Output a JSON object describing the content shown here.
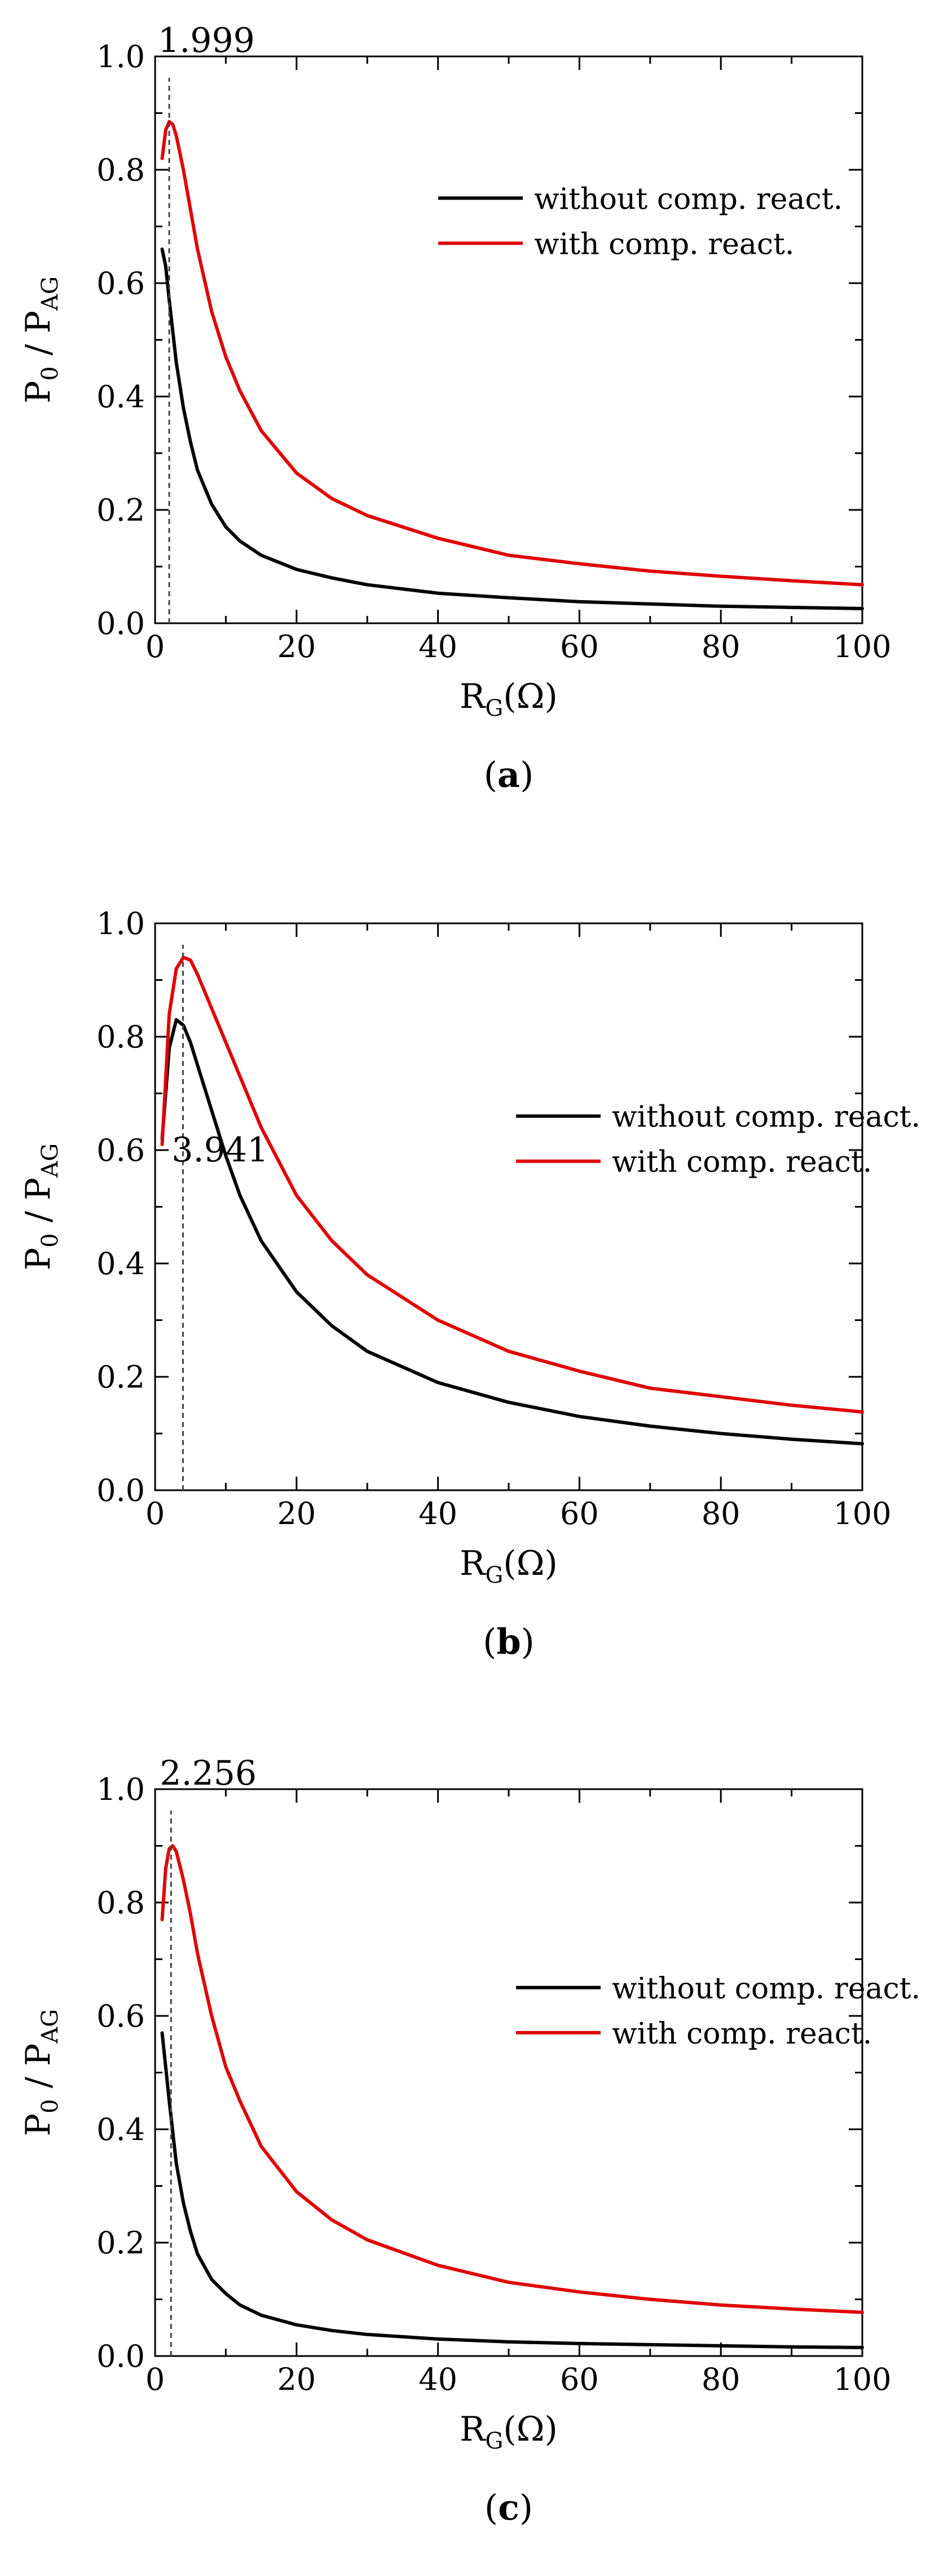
{
  "chart_data": [
    {
      "type": "line",
      "panel_label": "a",
      "xlabel": {
        "main": "R",
        "sub": "G",
        "unit": "(Ω)"
      },
      "ylabel": {
        "num": "P",
        "num_sub": "0",
        "sep": " / ",
        "den": "P",
        "den_sub": "AG"
      },
      "xlim": [
        0,
        100
      ],
      "ylim": [
        0,
        1.0
      ],
      "xticks": [
        0,
        20,
        40,
        60,
        80,
        100
      ],
      "yticks": [
        0.0,
        0.2,
        0.4,
        0.6,
        0.8,
        1.0
      ],
      "xticks_minor": [
        10,
        30,
        50,
        70,
        90
      ],
      "yticks_minor": [
        0.1,
        0.3,
        0.5,
        0.7,
        0.9
      ],
      "marker": {
        "x": 1.999,
        "label": "1.999"
      },
      "legend": {
        "position": "upper-right"
      },
      "series": [
        {
          "name": "without comp. react.",
          "color": "#000000",
          "x": [
            1,
            1.5,
            2,
            3,
            4,
            5,
            6,
            8,
            10,
            12,
            15,
            20,
            25,
            30,
            40,
            50,
            60,
            70,
            80,
            90,
            100
          ],
          "y": [
            0.66,
            0.63,
            0.57,
            0.46,
            0.38,
            0.32,
            0.27,
            0.21,
            0.17,
            0.145,
            0.12,
            0.095,
            0.08,
            0.068,
            0.053,
            0.045,
            0.038,
            0.034,
            0.03,
            0.028,
            0.026
          ]
        },
        {
          "name": "with comp. react.",
          "color": "#e00000",
          "x": [
            1,
            1.5,
            2,
            2.5,
            3,
            4,
            5,
            6,
            8,
            10,
            12,
            15,
            20,
            25,
            30,
            40,
            50,
            60,
            70,
            80,
            90,
            100
          ],
          "y": [
            0.82,
            0.87,
            0.885,
            0.88,
            0.86,
            0.8,
            0.73,
            0.66,
            0.55,
            0.47,
            0.41,
            0.34,
            0.265,
            0.22,
            0.19,
            0.15,
            0.12,
            0.105,
            0.092,
            0.083,
            0.075,
            0.068
          ]
        }
      ]
    },
    {
      "type": "line",
      "panel_label": "b",
      "xlabel": {
        "main": "R",
        "sub": "G",
        "unit": "(Ω)"
      },
      "ylabel": {
        "num": "P",
        "num_sub": "0",
        "sep": " / ",
        "den": "P",
        "den_sub": "AG"
      },
      "xlim": [
        0,
        100
      ],
      "ylim": [
        0,
        1.0
      ],
      "xticks": [
        0,
        20,
        40,
        60,
        80,
        100
      ],
      "yticks": [
        0.0,
        0.2,
        0.4,
        0.6,
        0.8,
        1.0
      ],
      "xticks_minor": [
        10,
        30,
        50,
        70,
        90
      ],
      "yticks_minor": [
        0.1,
        0.3,
        0.5,
        0.7,
        0.9
      ],
      "marker": {
        "x": 3.941,
        "label": "3.941"
      },
      "legend": {
        "position": "center-right"
      },
      "series": [
        {
          "name": "without comp. react.",
          "color": "#000000",
          "x": [
            1,
            2,
            3,
            4,
            5,
            6,
            8,
            10,
            12,
            15,
            20,
            25,
            30,
            40,
            50,
            60,
            70,
            80,
            90,
            100
          ],
          "y": [
            0.62,
            0.78,
            0.83,
            0.82,
            0.79,
            0.75,
            0.67,
            0.59,
            0.52,
            0.44,
            0.35,
            0.29,
            0.245,
            0.19,
            0.155,
            0.13,
            0.113,
            0.1,
            0.09,
            0.082
          ]
        },
        {
          "name": "with comp. react.",
          "color": "#e00000",
          "x": [
            1,
            2,
            3,
            4,
            5,
            6,
            8,
            10,
            12,
            15,
            20,
            25,
            30,
            40,
            50,
            60,
            70,
            80,
            90,
            100
          ],
          "y": [
            0.61,
            0.84,
            0.92,
            0.94,
            0.935,
            0.91,
            0.85,
            0.79,
            0.73,
            0.64,
            0.52,
            0.44,
            0.38,
            0.3,
            0.245,
            0.21,
            0.18,
            0.165,
            0.15,
            0.138
          ]
        }
      ]
    },
    {
      "type": "line",
      "panel_label": "c",
      "xlabel": {
        "main": "R",
        "sub": "G",
        "unit": "(Ω)"
      },
      "ylabel": {
        "num": "P",
        "num_sub": "0",
        "sep": " / ",
        "den": "P",
        "den_sub": "AG"
      },
      "xlim": [
        0,
        100
      ],
      "ylim": [
        0,
        1.0
      ],
      "xticks": [
        0,
        20,
        40,
        60,
        80,
        100
      ],
      "yticks": [
        0.0,
        0.2,
        0.4,
        0.6,
        0.8,
        1.0
      ],
      "xticks_minor": [
        10,
        30,
        50,
        70,
        90
      ],
      "yticks_minor": [
        0.1,
        0.3,
        0.5,
        0.7,
        0.9
      ],
      "marker": {
        "x": 2.256,
        "label": "2.256"
      },
      "legend": {
        "position": "center-right"
      },
      "series": [
        {
          "name": "without comp. react.",
          "color": "#000000",
          "x": [
            1,
            1.5,
            2,
            3,
            4,
            5,
            6,
            8,
            10,
            12,
            15,
            20,
            25,
            30,
            40,
            50,
            60,
            70,
            80,
            90,
            100
          ],
          "y": [
            0.57,
            0.51,
            0.45,
            0.34,
            0.27,
            0.22,
            0.18,
            0.135,
            0.11,
            0.09,
            0.072,
            0.055,
            0.045,
            0.038,
            0.03,
            0.025,
            0.022,
            0.02,
            0.018,
            0.016,
            0.015
          ]
        },
        {
          "name": "with comp. react.",
          "color": "#e00000",
          "x": [
            1,
            1.5,
            2,
            2.5,
            3,
            4,
            5,
            6,
            8,
            10,
            12,
            15,
            20,
            25,
            30,
            40,
            50,
            60,
            70,
            80,
            90,
            100
          ],
          "y": [
            0.77,
            0.86,
            0.895,
            0.9,
            0.89,
            0.84,
            0.78,
            0.71,
            0.6,
            0.51,
            0.45,
            0.37,
            0.29,
            0.24,
            0.205,
            0.16,
            0.13,
            0.113,
            0.1,
            0.09,
            0.083,
            0.077
          ]
        }
      ]
    }
  ]
}
